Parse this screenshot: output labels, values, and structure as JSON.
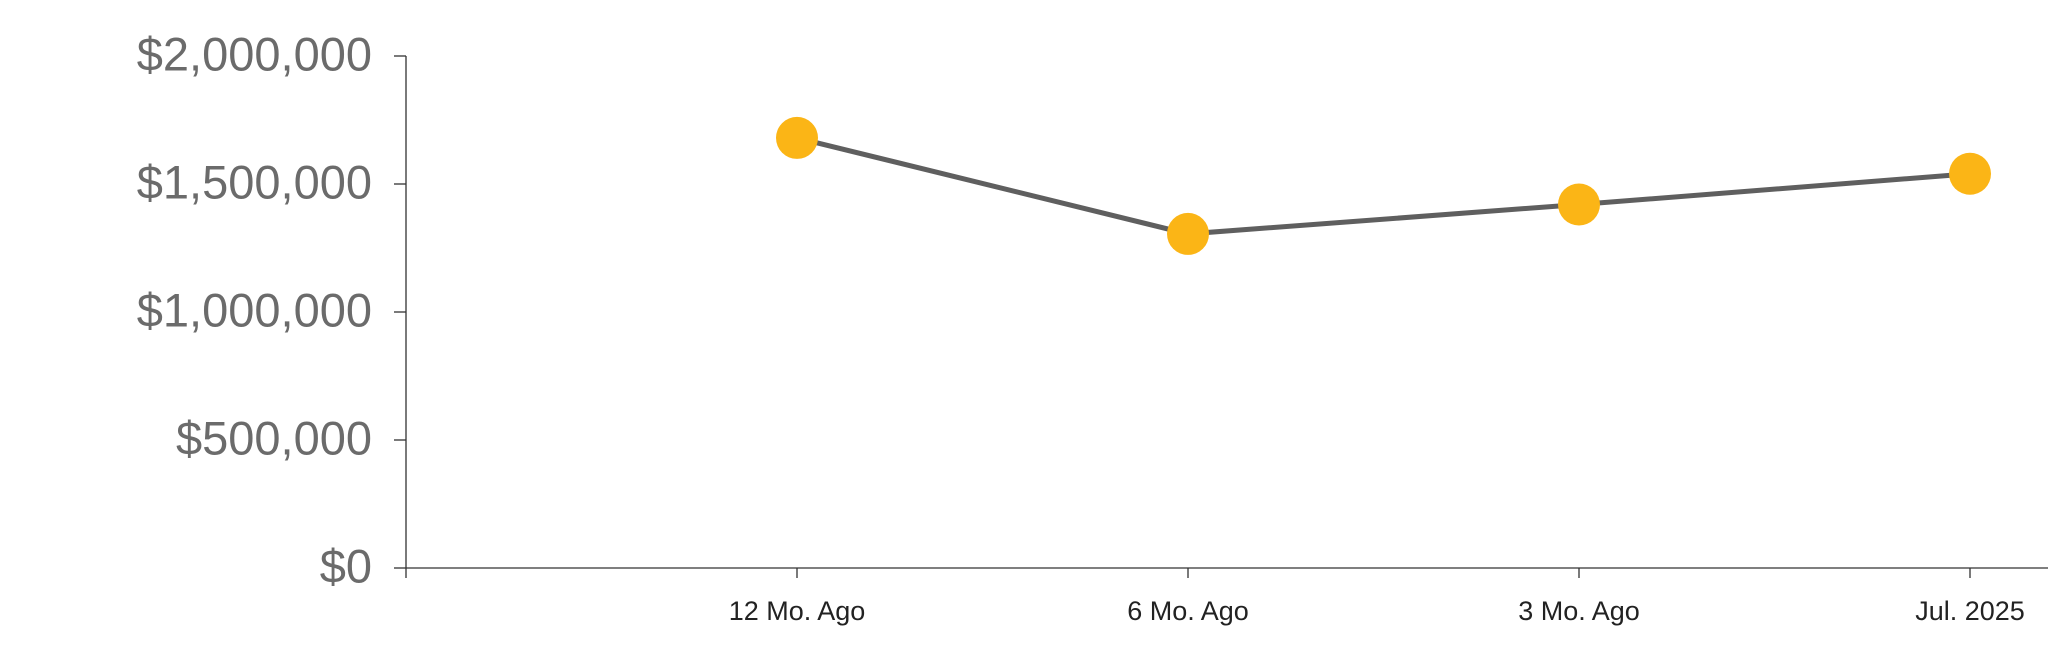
{
  "chart_data": {
    "type": "line",
    "categories": [
      "12 Mo. Ago",
      "6 Mo. Ago",
      "3 Mo. Ago",
      "Jul. 2025"
    ],
    "series": [
      {
        "values": [
          1680000,
          1305000,
          1420000,
          1540000
        ],
        "color": "#5f5f5f",
        "marker_color": "#fbb516"
      }
    ],
    "ylim": [
      0,
      2000000
    ],
    "yticks": [
      {
        "value": 0,
        "label": "$0"
      },
      {
        "value": 500000,
        "label": "$500,000"
      },
      {
        "value": 1000000,
        "label": "$1,000,000"
      },
      {
        "value": 1500000,
        "label": "$1,500,000"
      },
      {
        "value": 2000000,
        "label": "$2,000,000"
      }
    ],
    "grid": false
  }
}
